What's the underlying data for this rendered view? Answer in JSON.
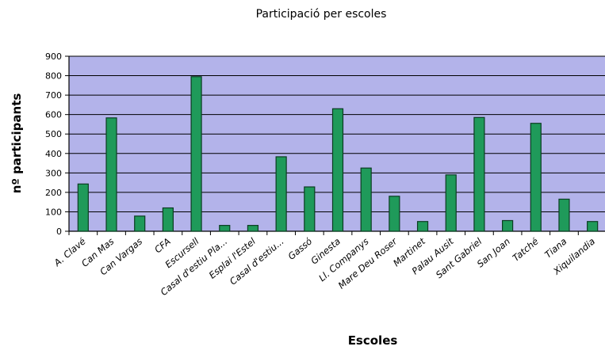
{
  "chart_data": {
    "type": "bar",
    "title": "Participació per escoles",
    "xlabel": "Escoles",
    "ylabel": "nº participants",
    "ylim": [
      0,
      900
    ],
    "yticks": [
      0,
      100,
      200,
      300,
      400,
      500,
      600,
      700,
      800,
      900
    ],
    "grid": true,
    "legend": "none",
    "categories": [
      "A. Clavé",
      "Can Mas",
      "Can Vargas",
      "CFA",
      "Escursell",
      "Casal d'estiu Pla...",
      "Esplai l'Estel",
      "Casal d'estiu...",
      "Gassó",
      "Ginesta",
      "Ll. Companys",
      "Mare Deu Roser",
      "Martinet",
      "Palau Ausit",
      "Sant Gabriel",
      "San Joan",
      "Tatché",
      "Tiana",
      "Xiquilandia"
    ],
    "values": [
      243,
      583,
      78,
      120,
      795,
      30,
      30,
      383,
      228,
      630,
      325,
      180,
      50,
      290,
      585,
      55,
      555,
      165,
      50
    ],
    "colors": {
      "plot_background": "#b3b3ea",
      "bar_fill": "#1f9a5a",
      "bar_stroke": "#0b3d22",
      "grid": "#000000"
    }
  }
}
